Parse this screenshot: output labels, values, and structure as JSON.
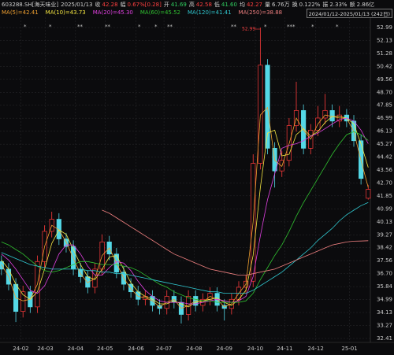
{
  "header": {
    "symbol": "603288.SH[海天味业]",
    "date": "2025/01/13",
    "quote": [
      {
        "label": "收",
        "value": "42.28",
        "color": "#ff4040"
      },
      {
        "label": "幅",
        "value": "0.67%[0.28]",
        "color": "#ff4040"
      },
      {
        "label": "开",
        "value": "41.69",
        "color": "#30d060"
      },
      {
        "label": "高",
        "value": "42.58",
        "color": "#ff4040"
      },
      {
        "label": "低",
        "value": "41.60",
        "color": "#30d060"
      },
      {
        "label": "均",
        "value": "42.27",
        "color": "#ff4040"
      },
      {
        "label": "量",
        "value": "6.76万",
        "color": "#d0d0d0"
      },
      {
        "label": "换",
        "value": "0.122%",
        "color": "#d0d0d0"
      },
      {
        "label": "振",
        "value": "2.33%",
        "color": "#d0d0d0"
      },
      {
        "label": "额",
        "value": "2.86亿",
        "color": "#d0d0d0"
      }
    ],
    "range": "2024/01/12-2025/01/13 (242日)"
  },
  "chart_data": {
    "type": "candlestick",
    "up_color": "#ff3b3b",
    "down_color": "#54d8e6",
    "max_label": "52.99",
    "candles": [
      [
        37.5,
        37.9,
        36.6,
        37.0
      ],
      [
        37.0,
        37.4,
        35.6,
        36.0
      ],
      [
        36.0,
        36.4,
        33.5,
        34.2
      ],
      [
        34.2,
        35.9,
        33.8,
        35.5
      ],
      [
        35.5,
        35.9,
        34.1,
        34.5
      ],
      [
        34.5,
        37.9,
        34.1,
        37.5
      ],
      [
        37.5,
        39.9,
        37.1,
        39.5
      ],
      [
        39.5,
        40.8,
        39.1,
        40.3
      ],
      [
        40.3,
        40.7,
        38.6,
        39.0
      ],
      [
        39.0,
        39.4,
        38.1,
        38.5
      ],
      [
        38.5,
        38.9,
        36.6,
        37.0
      ],
      [
        37.0,
        37.4,
        36.1,
        36.5
      ],
      [
        36.5,
        36.9,
        35.4,
        35.8
      ],
      [
        35.8,
        37.4,
        35.4,
        37.0
      ],
      [
        37.0,
        39.3,
        36.6,
        38.8
      ],
      [
        38.8,
        39.2,
        37.6,
        38.0
      ],
      [
        38.0,
        38.4,
        36.4,
        36.8
      ],
      [
        36.8,
        37.2,
        35.6,
        36.0
      ],
      [
        36.0,
        36.4,
        35.1,
        35.5
      ],
      [
        35.5,
        35.9,
        34.6,
        35.0
      ],
      [
        35.0,
        35.6,
        34.6,
        35.2
      ],
      [
        35.2,
        35.6,
        34.2,
        34.6
      ],
      [
        34.6,
        35.0,
        34.0,
        34.4
      ],
      [
        34.4,
        35.6,
        34.0,
        35.2
      ],
      [
        35.2,
        35.6,
        34.4,
        34.8
      ],
      [
        34.8,
        35.2,
        33.4,
        34.0
      ],
      [
        34.0,
        35.6,
        33.6,
        35.2
      ],
      [
        35.2,
        35.6,
        34.2,
        34.6
      ],
      [
        34.6,
        35.4,
        34.2,
        35.0
      ],
      [
        35.0,
        35.8,
        34.6,
        35.4
      ],
      [
        35.4,
        35.8,
        34.2,
        34.6
      ],
      [
        34.6,
        35.0,
        33.6,
        34.4
      ],
      [
        34.4,
        35.4,
        34.0,
        35.0
      ],
      [
        35.0,
        36.2,
        34.6,
        35.8
      ],
      [
        35.8,
        36.6,
        35.4,
        36.2
      ],
      [
        36.2,
        44.6,
        35.8,
        44.0
      ],
      [
        44.0,
        52.99,
        43.6,
        50.5
      ],
      [
        50.5,
        50.9,
        44.6,
        45.0
      ],
      [
        45.0,
        45.4,
        42.4,
        43.5
      ],
      [
        43.5,
        44.8,
        43.1,
        44.2
      ],
      [
        44.2,
        47.0,
        43.8,
        46.5
      ],
      [
        46.5,
        49.4,
        46.1,
        47.5
      ],
      [
        47.5,
        47.9,
        44.6,
        45.0
      ],
      [
        45.0,
        46.6,
        44.6,
        46.2
      ],
      [
        46.2,
        47.8,
        45.8,
        47.0
      ],
      [
        47.0,
        48.6,
        46.6,
        47.5
      ],
      [
        47.5,
        47.9,
        46.4,
        46.8
      ],
      [
        46.8,
        47.8,
        46.4,
        47.2
      ],
      [
        47.2,
        47.6,
        46.4,
        46.8
      ],
      [
        46.8,
        47.2,
        45.1,
        45.5
      ],
      [
        45.5,
        45.9,
        42.6,
        43.0
      ],
      [
        41.69,
        42.58,
        41.6,
        42.28
      ]
    ],
    "series": [
      {
        "name": "MA(5)=42.41",
        "color": "#f0a030",
        "values": [
          37.3,
          36.5,
          35.1,
          34.9,
          35.0,
          36.0,
          38.5,
          39.9,
          39.6,
          38.8,
          37.7,
          36.7,
          36.1,
          36.4,
          37.9,
          38.4,
          37.4,
          36.4,
          35.7,
          35.2,
          35.1,
          34.9,
          34.5,
          34.8,
          35.0,
          34.4,
          34.6,
          34.9,
          34.8,
          35.2,
          35.0,
          34.5,
          34.7,
          35.4,
          36.0,
          40.1,
          47.2,
          47.7,
          44.2,
          43.8,
          45.3,
          47.0,
          46.2,
          45.6,
          46.6,
          47.2,
          47.1,
          47.0,
          47.0,
          46.1,
          44.2,
          42.41
        ]
      },
      {
        "name": "MA(10)=43.73",
        "color": "#f5e642",
        "values": [
          37.6,
          37.0,
          36.0,
          35.3,
          35.0,
          35.5,
          37.0,
          38.7,
          39.6,
          39.3,
          38.3,
          37.3,
          36.5,
          36.3,
          37.0,
          37.8,
          37.9,
          37.0,
          36.1,
          35.5,
          35.2,
          35.0,
          34.7,
          34.7,
          34.9,
          34.7,
          34.5,
          34.8,
          34.9,
          35.0,
          35.1,
          34.8,
          34.6,
          35.0,
          35.6,
          37.9,
          42.4,
          46.0,
          46.2,
          44.5,
          44.6,
          45.9,
          46.3,
          45.8,
          46.1,
          46.7,
          47.1,
          47.1,
          47.0,
          46.6,
          45.3,
          43.73
        ]
      },
      {
        "name": "MA(20)=45.30",
        "color": "#e040e0",
        "values": [
          38.0,
          37.6,
          37.0,
          36.3,
          35.6,
          35.4,
          35.9,
          36.9,
          38.0,
          38.6,
          38.6,
          38.0,
          37.2,
          36.6,
          36.6,
          37.1,
          37.5,
          37.4,
          36.9,
          36.2,
          35.6,
          35.2,
          34.9,
          34.8,
          34.8,
          34.8,
          34.7,
          34.7,
          34.8,
          34.9,
          35.0,
          34.9,
          34.8,
          34.9,
          35.2,
          36.5,
          39.2,
          41.6,
          43.3,
          45.0,
          45.2,
          45.3,
          45.5,
          45.8,
          46.0,
          46.3,
          46.6,
          46.9,
          47.0,
          46.8,
          46.2,
          45.3
        ]
      },
      {
        "name": "MA(60)=45.52",
        "color": "#30c030",
        "values": [
          38.8,
          38.6,
          38.3,
          38.0,
          37.6,
          37.2,
          36.9,
          36.8,
          36.9,
          37.1,
          37.3,
          37.5,
          37.5,
          37.4,
          37.3,
          37.3,
          37.3,
          37.2,
          37.1,
          36.9,
          36.6,
          36.3,
          36.0,
          35.8,
          35.5,
          35.3,
          35.1,
          35.0,
          34.9,
          34.9,
          34.8,
          34.8,
          34.8,
          34.8,
          34.9,
          35.4,
          36.3,
          37.1,
          37.9,
          38.6,
          39.5,
          40.5,
          41.4,
          42.2,
          43.0,
          43.8,
          44.6,
          45.3,
          45.9,
          46.1,
          45.9,
          45.52
        ]
      },
      {
        "name": "MA(120)=41.41",
        "color": "#30c8d0",
        "values": [
          38.1,
          37.9,
          37.7,
          37.5,
          37.3,
          37.2,
          37.1,
          37.0,
          37.0,
          37.0,
          37.0,
          37.0,
          36.9,
          36.9,
          36.8,
          36.8,
          36.7,
          36.7,
          36.6,
          36.5,
          36.4,
          36.3,
          36.2,
          36.1,
          36.0,
          35.9,
          35.8,
          35.7,
          35.6,
          35.5,
          35.5,
          35.4,
          35.4,
          35.4,
          35.4,
          35.6,
          35.9,
          36.2,
          36.5,
          36.8,
          37.2,
          37.6,
          38.0,
          38.4,
          38.9,
          39.3,
          39.7,
          40.2,
          40.6,
          40.9,
          41.2,
          41.41
        ]
      },
      {
        "name": "MA(250)=38.88",
        "color": "#f08080",
        "values": [
          null,
          null,
          null,
          null,
          null,
          null,
          null,
          null,
          null,
          null,
          null,
          null,
          null,
          null,
          40.9,
          40.7,
          40.4,
          40.1,
          39.8,
          39.5,
          39.2,
          38.9,
          38.6,
          38.3,
          38.0,
          37.8,
          37.6,
          37.4,
          37.2,
          37.0,
          36.9,
          36.8,
          36.7,
          36.6,
          36.6,
          36.7,
          36.8,
          36.9,
          37.0,
          37.2,
          37.4,
          37.6,
          37.8,
          38.0,
          38.2,
          38.4,
          38.6,
          38.7,
          38.8,
          38.85,
          38.86,
          38.88
        ]
      }
    ],
    "xlim": [
      -0.2,
      51.3
    ],
    "xticks": [
      {
        "value": 2.7,
        "label": "24-02"
      },
      {
        "value": 6.1,
        "label": "24-03"
      },
      {
        "value": 10.3,
        "label": "24-04"
      },
      {
        "value": 14.4,
        "label": "24-05"
      },
      {
        "value": 18.7,
        "label": "24-06"
      },
      {
        "value": 22.6,
        "label": "24-07"
      },
      {
        "value": 26.8,
        "label": "24-08"
      },
      {
        "value": 31.0,
        "label": "24-09"
      },
      {
        "value": 35.3,
        "label": "24-10"
      },
      {
        "value": 39.4,
        "label": "24-11"
      },
      {
        "value": 43.7,
        "label": "24-12"
      },
      {
        "value": 48.4,
        "label": "25-01"
      }
    ],
    "ylim": [
      32.41,
      52.99
    ],
    "yticks": [
      52.99,
      52.13,
      51.28,
      50.42,
      49.56,
      {
        "value": 48.7,
        "label": "48.70"
      },
      47.85,
      46.99,
      46.13,
      45.27,
      44.42,
      43.56,
      {
        "value": 42.7,
        "label": "42.70"
      },
      41.85,
      40.99,
      40.13,
      39.27,
      38.42,
      37.56,
      {
        "value": 36.7,
        "label": "36.70"
      },
      35.84,
      34.99,
      34.13,
      33.27,
      32.41
    ],
    "grid": true
  }
}
